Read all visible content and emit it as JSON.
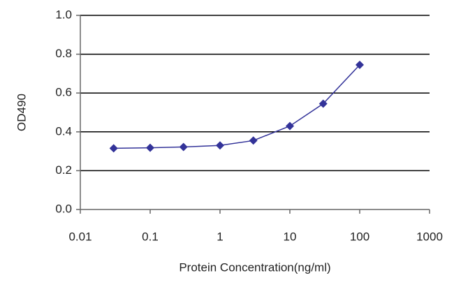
{
  "chart_data": {
    "type": "line",
    "xlabel": "Protein Concentration(ng/ml)",
    "ylabel": "OD490",
    "xscale": "log",
    "grid": true,
    "x": [
      0.03,
      0.1,
      0.3,
      1,
      3,
      10,
      30,
      100
    ],
    "series": [
      {
        "color": "#333399",
        "values": [
          0.315,
          0.318,
          0.322,
          0.33,
          0.355,
          0.43,
          0.545,
          0.745
        ]
      }
    ],
    "xlim": [
      0.01,
      1000
    ],
    "xticks": [
      0.01,
      0.1,
      1,
      10,
      100,
      1000
    ],
    "ylim": [
      0,
      1
    ],
    "yticks": [
      {
        "value": 0,
        "label": "0.0"
      },
      {
        "value": 0.2,
        "label": "0.2"
      },
      {
        "value": 0.4,
        "label": "0.4"
      },
      {
        "value": 0.6,
        "label": "0.6"
      },
      {
        "value": 0.8,
        "label": "0.8"
      },
      {
        "value": 1,
        "label": "1.0"
      }
    ]
  }
}
